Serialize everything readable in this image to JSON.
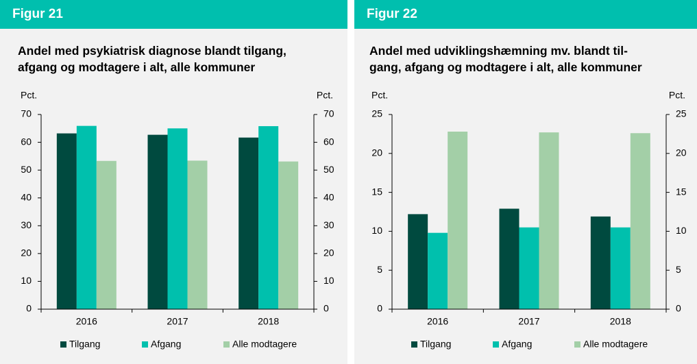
{
  "chart_data": [
    {
      "type": "bar",
      "figure_label": "Figur 21",
      "title": "Andel med psykiatrisk diagnose blandt tilgang,\nafgang og modtagere i alt, alle kommuner",
      "ylabel": "Pct.",
      "y2label": "Pct.",
      "categories": [
        "2016",
        "2017",
        "2018"
      ],
      "series": [
        {
          "name": "Tilgang",
          "color": "#004a3f",
          "values": [
            63.2,
            62.7,
            61.7
          ]
        },
        {
          "name": "Afgang",
          "color": "#00c0ad",
          "values": [
            65.9,
            65.0,
            65.8
          ]
        },
        {
          "name": "Alle modtagere",
          "color": "#a3cfa7",
          "values": [
            53.3,
            53.4,
            53.1
          ]
        }
      ],
      "ylim": [
        0,
        70
      ],
      "yticks": [
        0,
        10,
        20,
        30,
        40,
        50,
        60,
        70
      ],
      "y2lim": [
        0,
        70
      ],
      "y2ticks": [
        0,
        10,
        20,
        30,
        40,
        50,
        60,
        70
      ],
      "grid": false,
      "legend": "bottom"
    },
    {
      "type": "bar",
      "figure_label": "Figur 22",
      "title": "Andel med udviklingshæmning mv. blandt til-\ngang, afgang og modtagere i alt, alle kommuner",
      "ylabel": "Pct.",
      "y2label": "Pct.",
      "categories": [
        "2016",
        "2017",
        "2018"
      ],
      "series": [
        {
          "name": "Tilgang",
          "color": "#004a3f",
          "values": [
            12.2,
            12.9,
            11.9
          ]
        },
        {
          "name": "Afgang",
          "color": "#00c0ad",
          "values": [
            9.8,
            10.5,
            10.5
          ]
        },
        {
          "name": "Alle modtagere",
          "color": "#a3cfa7",
          "values": [
            22.8,
            22.7,
            22.6
          ]
        }
      ],
      "ylim": [
        0,
        25
      ],
      "yticks": [
        0,
        5,
        10,
        15,
        20,
        25
      ],
      "y2lim": [
        0,
        25
      ],
      "y2ticks": [
        0,
        5,
        10,
        15,
        20,
        25
      ],
      "grid": false,
      "legend": "bottom"
    }
  ]
}
